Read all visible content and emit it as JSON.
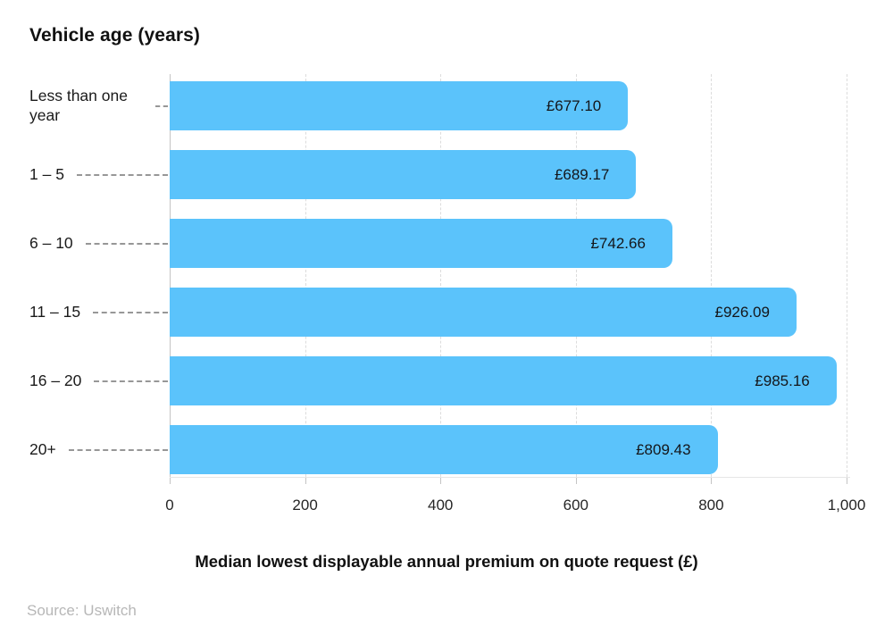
{
  "chart_data": {
    "type": "bar",
    "orientation": "horizontal",
    "title": "Vehicle age (years)",
    "categories": [
      "Less than one year",
      "1 – 5",
      "6 – 10",
      "11 – 15",
      "16 – 20",
      "20+"
    ],
    "values": [
      677.1,
      689.17,
      742.66,
      926.09,
      985.16,
      809.43
    ],
    "value_labels": [
      "£677.10",
      "£689.17",
      "£742.66",
      "£926.09",
      "£985.16",
      "£809.43"
    ],
    "xlabel": "Median lowest displayable annual premium on quote request (£)",
    "xlim": [
      0,
      1000
    ],
    "x_ticks": [
      "0",
      "200",
      "400",
      "600",
      "800",
      "1,000"
    ],
    "grid": "vertical-dashed",
    "legend": "none",
    "bar_color": "#5bc3fb",
    "value_text_color": "#14161a",
    "source": "Source: Uswitch"
  }
}
